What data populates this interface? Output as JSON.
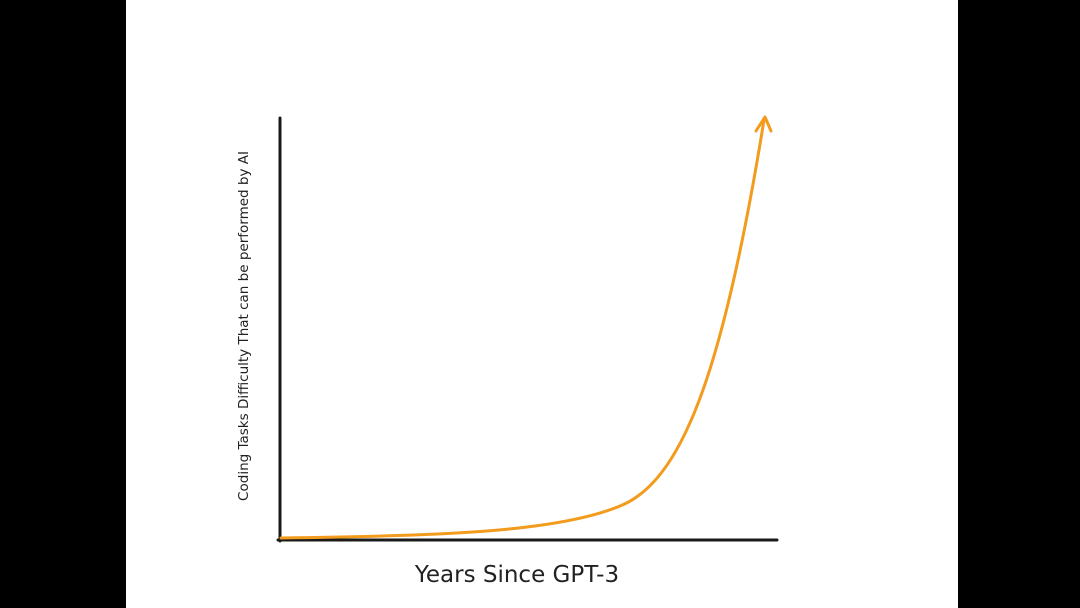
{
  "chart_data": {
    "type": "line",
    "x_label": "Years Since GPT-3",
    "y_label": "Coding Tasks Difficulty That can be performed by AI",
    "color": "#f29b1d"
  }
}
